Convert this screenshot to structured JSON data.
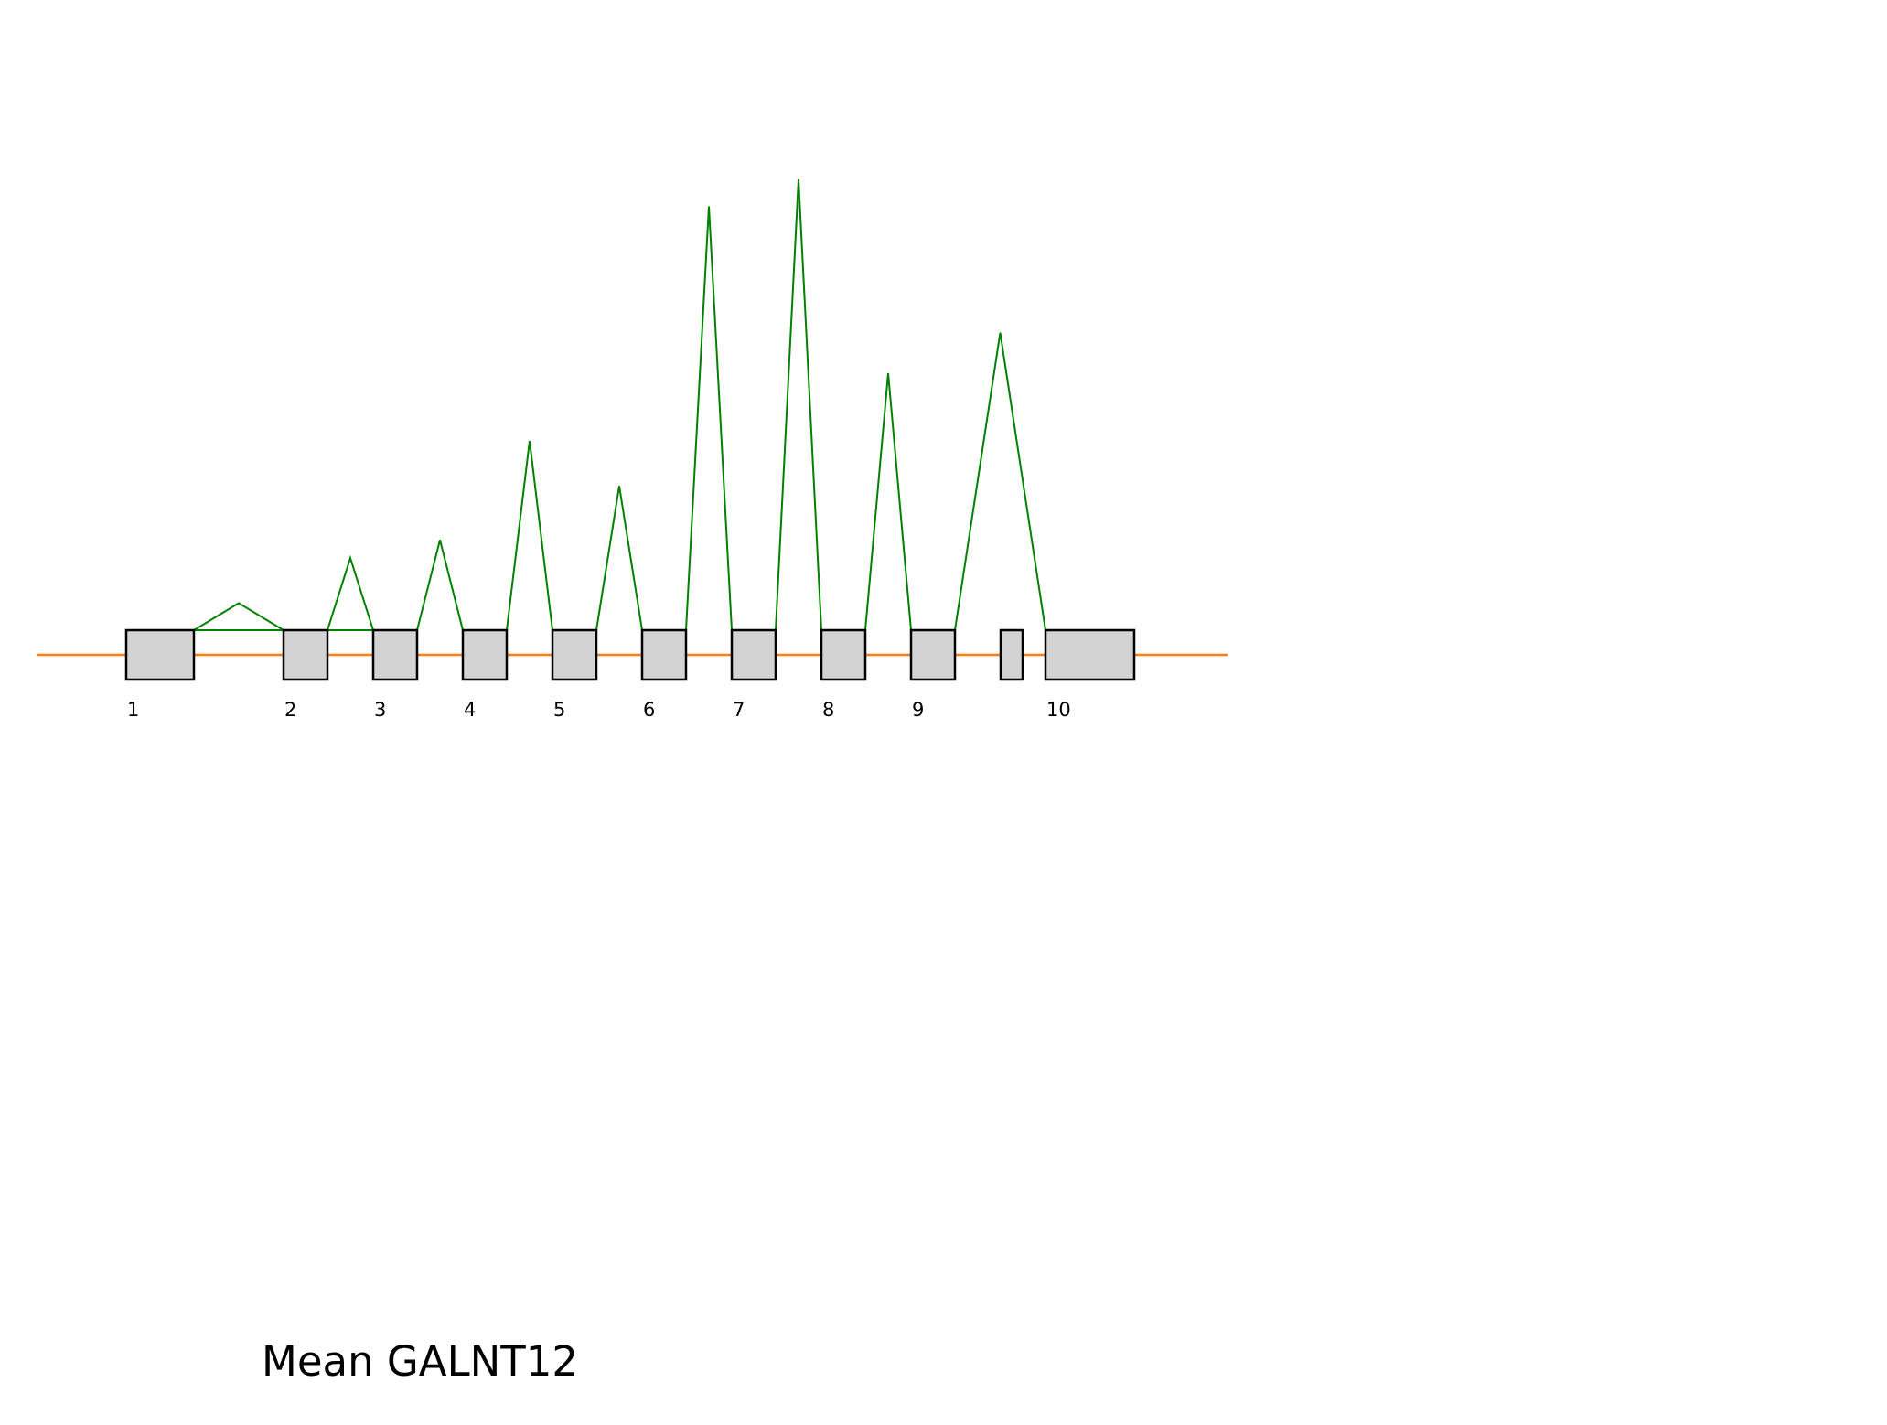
{
  "caption": "Mean GALNT12",
  "colors": {
    "backbone": "#ff7f0e",
    "junction": "#008000",
    "exon_fill": "#d3d3d3",
    "exon_stroke": "#000000"
  },
  "exon_labels": [
    "1",
    "2",
    "3",
    "4",
    "5",
    "6",
    "7",
    "8",
    "9",
    "10"
  ],
  "splice_junctions": [
    {
      "from_exon": 1,
      "to_exon": 2,
      "relative_height": 0.06
    },
    {
      "from_exon": 1,
      "to_exon": 3,
      "relative_height": 0.0
    },
    {
      "from_exon": 2,
      "to_exon": 3,
      "relative_height": 0.16
    },
    {
      "from_exon": 3,
      "to_exon": 4,
      "relative_height": 0.2
    },
    {
      "from_exon": 4,
      "to_exon": 5,
      "relative_height": 0.42
    },
    {
      "from_exon": 5,
      "to_exon": 6,
      "relative_height": 0.32
    },
    {
      "from_exon": 6,
      "to_exon": 7,
      "relative_height": 0.94
    },
    {
      "from_exon": 7,
      "to_exon": 8,
      "relative_height": 1.0
    },
    {
      "from_exon": 8,
      "to_exon": 9,
      "relative_height": 0.57
    },
    {
      "from_exon": 9,
      "to_exon": 10,
      "relative_height": 0.66
    }
  ]
}
